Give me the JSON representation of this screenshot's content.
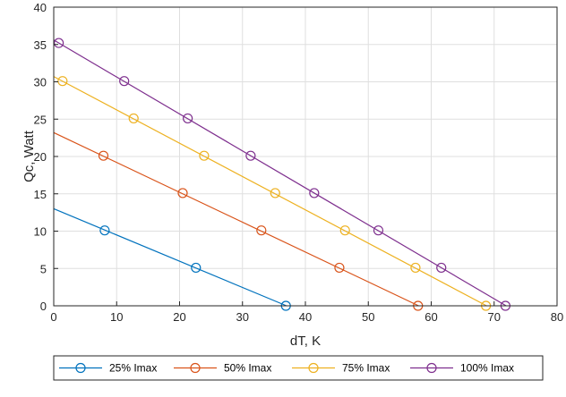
{
  "chart_data": {
    "type": "line",
    "title": "",
    "xlabel": "dT, K",
    "ylabel": "Qc, Watt",
    "xlim": [
      0,
      80
    ],
    "ylim": [
      0,
      40
    ],
    "xticks": [
      0,
      10,
      20,
      30,
      40,
      50,
      60,
      70,
      80
    ],
    "yticks": [
      0,
      5,
      10,
      15,
      20,
      25,
      30,
      35,
      40
    ],
    "grid": true,
    "legend_position": "bottom",
    "series": [
      {
        "name": "25% Imax",
        "color": "#0072BD",
        "line": [
          [
            0,
            13.0
          ],
          [
            37.0,
            0
          ]
        ],
        "markers": [
          [
            8.1,
            10.1
          ],
          [
            22.6,
            5.1
          ],
          [
            36.9,
            0
          ]
        ]
      },
      {
        "name": "50% Imax",
        "color": "#D95319",
        "line": [
          [
            0,
            23.2
          ],
          [
            58.0,
            0
          ]
        ],
        "markers": [
          [
            7.9,
            20.1
          ],
          [
            20.5,
            15.1
          ],
          [
            33.0,
            10.1
          ],
          [
            45.4,
            5.1
          ],
          [
            57.9,
            0
          ]
        ]
      },
      {
        "name": "75% Imax",
        "color": "#EDB120",
        "line": [
          [
            0,
            30.7
          ],
          [
            68.8,
            0
          ]
        ],
        "markers": [
          [
            1.4,
            30.1
          ],
          [
            12.7,
            25.1
          ],
          [
            23.9,
            20.1
          ],
          [
            35.2,
            15.1
          ],
          [
            46.3,
            10.1
          ],
          [
            57.5,
            5.1
          ],
          [
            68.7,
            0
          ]
        ]
      },
      {
        "name": "100% Imax",
        "color": "#7E2F8E",
        "line": [
          [
            0,
            35.6
          ],
          [
            71.9,
            0
          ]
        ],
        "markers": [
          [
            0.8,
            35.2
          ],
          [
            11.2,
            30.1
          ],
          [
            21.3,
            25.1
          ],
          [
            31.3,
            20.1
          ],
          [
            41.4,
            15.1
          ],
          [
            51.6,
            10.1
          ],
          [
            61.6,
            5.1
          ],
          [
            71.8,
            0
          ]
        ]
      }
    ]
  }
}
